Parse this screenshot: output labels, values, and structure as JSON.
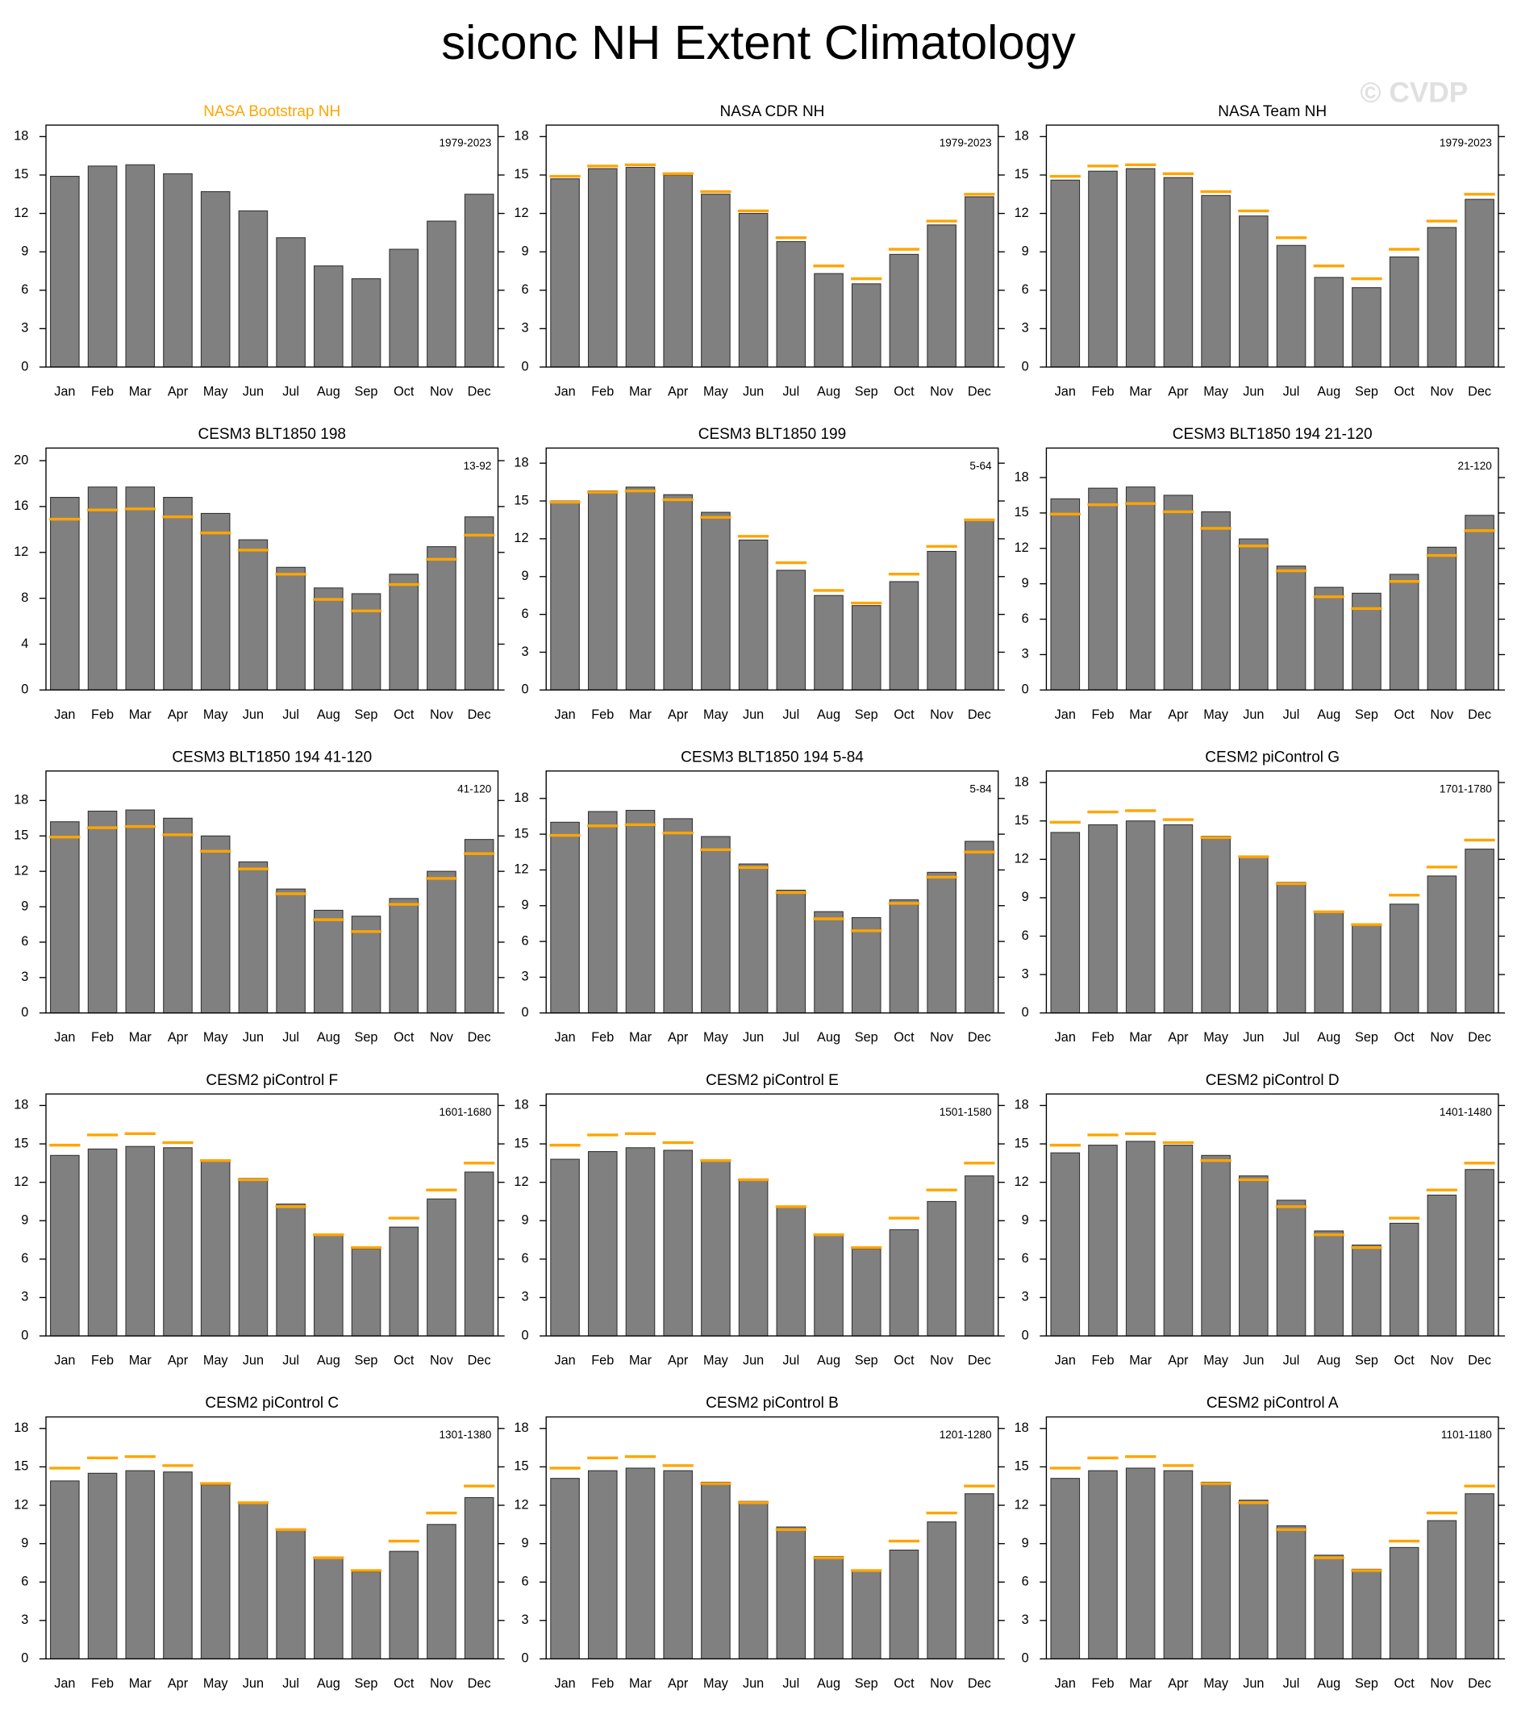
{
  "title": "siconc NH Extent Climatology",
  "watermark": "© CVDP",
  "chart_data": [
    {
      "type": "bar",
      "title": "NASA Bootstrap NH",
      "title_color": "#ffa500",
      "annotation": "1979-2023",
      "categories": [
        "Jan",
        "Feb",
        "Mar",
        "Apr",
        "May",
        "Jun",
        "Jul",
        "Aug",
        "Sep",
        "Oct",
        "Nov",
        "Dec"
      ],
      "values": [
        14.9,
        15.7,
        15.8,
        15.1,
        13.7,
        12.2,
        10.1,
        7.9,
        6.9,
        9.2,
        11.4,
        13.5
      ],
      "color": "#808080",
      "ylim": [
        0,
        18.9
      ],
      "yticks": [
        0,
        3,
        6,
        9,
        12,
        15,
        18
      ]
    },
    {
      "type": "bar",
      "title": "NASA CDR NH",
      "title_color": "#000000",
      "annotation": "1979-2023",
      "categories": [
        "Jan",
        "Feb",
        "Mar",
        "Apr",
        "May",
        "Jun",
        "Jul",
        "Aug",
        "Sep",
        "Oct",
        "Nov",
        "Dec"
      ],
      "values": [
        14.7,
        15.5,
        15.6,
        15.0,
        13.5,
        12.0,
        9.8,
        7.3,
        6.5,
        8.8,
        11.1,
        13.3
      ],
      "color": "#808080",
      "ref_values": [
        14.9,
        15.7,
        15.8,
        15.1,
        13.7,
        12.2,
        10.1,
        7.9,
        6.9,
        9.2,
        11.4,
        13.5
      ],
      "ref_color": "#ffa500",
      "ylim": [
        0,
        18.9
      ],
      "yticks": [
        0,
        3,
        6,
        9,
        12,
        15,
        18
      ]
    },
    {
      "type": "bar",
      "title": "NASA Team NH",
      "title_color": "#000000",
      "annotation": "1979-2023",
      "categories": [
        "Jan",
        "Feb",
        "Mar",
        "Apr",
        "May",
        "Jun",
        "Jul",
        "Aug",
        "Sep",
        "Oct",
        "Nov",
        "Dec"
      ],
      "values": [
        14.6,
        15.3,
        15.5,
        14.8,
        13.4,
        11.8,
        9.5,
        7.0,
        6.2,
        8.6,
        10.9,
        13.1
      ],
      "color": "#808080",
      "ref_values": [
        14.9,
        15.7,
        15.8,
        15.1,
        13.7,
        12.2,
        10.1,
        7.9,
        6.9,
        9.2,
        11.4,
        13.5
      ],
      "ref_color": "#ffa500",
      "ylim": [
        0,
        18.9
      ],
      "yticks": [
        0,
        3,
        6,
        9,
        12,
        15,
        18
      ]
    },
    {
      "type": "bar",
      "title": "CESM3 BLT1850 198",
      "title_color": "#000000",
      "annotation": "13-92",
      "categories": [
        "Jan",
        "Feb",
        "Mar",
        "Apr",
        "May",
        "Jun",
        "Jul",
        "Aug",
        "Sep",
        "Oct",
        "Nov",
        "Dec"
      ],
      "values": [
        16.8,
        17.7,
        17.7,
        16.8,
        15.4,
        13.1,
        10.7,
        8.9,
        8.4,
        10.1,
        12.5,
        15.1
      ],
      "color": "#808080",
      "ref_values": [
        14.9,
        15.7,
        15.8,
        15.1,
        13.7,
        12.2,
        10.1,
        7.9,
        6.9,
        9.2,
        11.4,
        13.5
      ],
      "ref_color": "#ffa500",
      "ylim": [
        0,
        21.1
      ],
      "yticks": [
        0,
        4,
        8,
        12,
        16,
        20
      ]
    },
    {
      "type": "bar",
      "title": "CESM3 BLT1850 199",
      "title_color": "#000000",
      "annotation": "5-64",
      "categories": [
        "Jan",
        "Feb",
        "Mar",
        "Apr",
        "May",
        "Jun",
        "Jul",
        "Aug",
        "Sep",
        "Oct",
        "Nov",
        "Dec"
      ],
      "values": [
        15.0,
        15.8,
        16.1,
        15.5,
        14.1,
        11.9,
        9.5,
        7.5,
        6.7,
        8.6,
        11.0,
        13.5
      ],
      "color": "#808080",
      "ref_values": [
        14.9,
        15.7,
        15.8,
        15.1,
        13.7,
        12.2,
        10.1,
        7.9,
        6.9,
        9.2,
        11.4,
        13.5
      ],
      "ref_color": "#ffa500",
      "ylim": [
        0,
        19.2
      ],
      "yticks": [
        0,
        3,
        6,
        9,
        12,
        15,
        18
      ]
    },
    {
      "type": "bar",
      "title": "CESM3 BLT1850 194 21-120",
      "title_color": "#000000",
      "annotation": "21-120",
      "categories": [
        "Jan",
        "Feb",
        "Mar",
        "Apr",
        "May",
        "Jun",
        "Jul",
        "Aug",
        "Sep",
        "Oct",
        "Nov",
        "Dec"
      ],
      "values": [
        16.2,
        17.1,
        17.2,
        16.5,
        15.1,
        12.8,
        10.5,
        8.7,
        8.2,
        9.8,
        12.1,
        14.8
      ],
      "color": "#808080",
      "ref_values": [
        14.9,
        15.7,
        15.8,
        15.1,
        13.7,
        12.2,
        10.1,
        7.9,
        6.9,
        9.2,
        11.4,
        13.5
      ],
      "ref_color": "#ffa500",
      "ylim": [
        0,
        20.5
      ],
      "yticks": [
        0,
        3,
        6,
        9,
        12,
        15,
        18
      ]
    },
    {
      "type": "bar",
      "title": "CESM3 BLT1850 194 41-120",
      "title_color": "#000000",
      "annotation": "41-120",
      "categories": [
        "Jan",
        "Feb",
        "Mar",
        "Apr",
        "May",
        "Jun",
        "Jul",
        "Aug",
        "Sep",
        "Oct",
        "Nov",
        "Dec"
      ],
      "values": [
        16.2,
        17.1,
        17.2,
        16.5,
        15.0,
        12.8,
        10.5,
        8.7,
        8.2,
        9.7,
        12.0,
        14.7
      ],
      "color": "#808080",
      "ref_values": [
        14.9,
        15.7,
        15.8,
        15.1,
        13.7,
        12.2,
        10.1,
        7.9,
        6.9,
        9.2,
        11.4,
        13.5
      ],
      "ref_color": "#ffa500",
      "ylim": [
        0,
        20.5
      ],
      "yticks": [
        0,
        3,
        6,
        9,
        12,
        15,
        18
      ]
    },
    {
      "type": "bar",
      "title": "CESM3 BLT1850 194 5-84",
      "title_color": "#000000",
      "annotation": "5-84",
      "categories": [
        "Jan",
        "Feb",
        "Mar",
        "Apr",
        "May",
        "Jun",
        "Jul",
        "Aug",
        "Sep",
        "Oct",
        "Nov",
        "Dec"
      ],
      "values": [
        16.0,
        16.9,
        17.0,
        16.3,
        14.8,
        12.5,
        10.3,
        8.5,
        8.0,
        9.5,
        11.8,
        14.4
      ],
      "color": "#808080",
      "ref_values": [
        14.9,
        15.7,
        15.8,
        15.1,
        13.7,
        12.2,
        10.1,
        7.9,
        6.9,
        9.2,
        11.4,
        13.5
      ],
      "ref_color": "#ffa500",
      "ylim": [
        0,
        20.3
      ],
      "yticks": [
        0,
        3,
        6,
        9,
        12,
        15,
        18
      ]
    },
    {
      "type": "bar",
      "title": "CESM2 piControl G",
      "title_color": "#000000",
      "annotation": "1701-1780",
      "categories": [
        "Jan",
        "Feb",
        "Mar",
        "Apr",
        "May",
        "Jun",
        "Jul",
        "Aug",
        "Sep",
        "Oct",
        "Nov",
        "Dec"
      ],
      "values": [
        14.1,
        14.7,
        15.0,
        14.7,
        13.8,
        12.2,
        10.2,
        7.9,
        6.9,
        8.5,
        10.7,
        12.8
      ],
      "color": "#808080",
      "ref_values": [
        14.9,
        15.7,
        15.8,
        15.1,
        13.7,
        12.2,
        10.1,
        7.9,
        6.9,
        9.2,
        11.4,
        13.5
      ],
      "ref_color": "#ffa500",
      "ylim": [
        0,
        18.9
      ],
      "yticks": [
        0,
        3,
        6,
        9,
        12,
        15,
        18
      ]
    },
    {
      "type": "bar",
      "title": "CESM2 piControl F",
      "title_color": "#000000",
      "annotation": "1601-1680",
      "categories": [
        "Jan",
        "Feb",
        "Mar",
        "Apr",
        "May",
        "Jun",
        "Jul",
        "Aug",
        "Sep",
        "Oct",
        "Nov",
        "Dec"
      ],
      "values": [
        14.1,
        14.6,
        14.8,
        14.7,
        13.7,
        12.3,
        10.3,
        7.9,
        6.8,
        8.5,
        10.7,
        12.8
      ],
      "color": "#808080",
      "ref_values": [
        14.9,
        15.7,
        15.8,
        15.1,
        13.7,
        12.2,
        10.1,
        7.9,
        6.9,
        9.2,
        11.4,
        13.5
      ],
      "ref_color": "#ffa500",
      "ylim": [
        0,
        18.9
      ],
      "yticks": [
        0,
        3,
        6,
        9,
        12,
        15,
        18
      ]
    },
    {
      "type": "bar",
      "title": "CESM2 piControl E",
      "title_color": "#000000",
      "annotation": "1501-1580",
      "categories": [
        "Jan",
        "Feb",
        "Mar",
        "Apr",
        "May",
        "Jun",
        "Jul",
        "Aug",
        "Sep",
        "Oct",
        "Nov",
        "Dec"
      ],
      "values": [
        13.8,
        14.4,
        14.7,
        14.5,
        13.7,
        12.2,
        10.1,
        7.9,
        6.8,
        8.3,
        10.5,
        12.5
      ],
      "color": "#808080",
      "ref_values": [
        14.9,
        15.7,
        15.8,
        15.1,
        13.7,
        12.2,
        10.1,
        7.9,
        6.9,
        9.2,
        11.4,
        13.5
      ],
      "ref_color": "#ffa500",
      "ylim": [
        0,
        18.9
      ],
      "yticks": [
        0,
        3,
        6,
        9,
        12,
        15,
        18
      ]
    },
    {
      "type": "bar",
      "title": "CESM2 piControl D",
      "title_color": "#000000",
      "annotation": "1401-1480",
      "categories": [
        "Jan",
        "Feb",
        "Mar",
        "Apr",
        "May",
        "Jun",
        "Jul",
        "Aug",
        "Sep",
        "Oct",
        "Nov",
        "Dec"
      ],
      "values": [
        14.3,
        14.9,
        15.2,
        14.9,
        14.1,
        12.5,
        10.6,
        8.2,
        7.1,
        8.8,
        11.0,
        13.0
      ],
      "color": "#808080",
      "ref_values": [
        14.9,
        15.7,
        15.8,
        15.1,
        13.7,
        12.2,
        10.1,
        7.9,
        6.9,
        9.2,
        11.4,
        13.5
      ],
      "ref_color": "#ffa500",
      "ylim": [
        0,
        18.9
      ],
      "yticks": [
        0,
        3,
        6,
        9,
        12,
        15,
        18
      ]
    },
    {
      "type": "bar",
      "title": "CESM2 piControl C",
      "title_color": "#000000",
      "annotation": "1301-1380",
      "categories": [
        "Jan",
        "Feb",
        "Mar",
        "Apr",
        "May",
        "Jun",
        "Jul",
        "Aug",
        "Sep",
        "Oct",
        "Nov",
        "Dec"
      ],
      "values": [
        13.9,
        14.5,
        14.7,
        14.6,
        13.6,
        12.2,
        10.1,
        7.9,
        6.8,
        8.4,
        10.5,
        12.6
      ],
      "color": "#808080",
      "ref_values": [
        14.9,
        15.7,
        15.8,
        15.1,
        13.7,
        12.2,
        10.1,
        7.9,
        6.9,
        9.2,
        11.4,
        13.5
      ],
      "ref_color": "#ffa500",
      "ylim": [
        0,
        18.9
      ],
      "yticks": [
        0,
        3,
        6,
        9,
        12,
        15,
        18
      ]
    },
    {
      "type": "bar",
      "title": "CESM2 piControl B",
      "title_color": "#000000",
      "annotation": "1201-1280",
      "categories": [
        "Jan",
        "Feb",
        "Mar",
        "Apr",
        "May",
        "Jun",
        "Jul",
        "Aug",
        "Sep",
        "Oct",
        "Nov",
        "Dec"
      ],
      "values": [
        14.1,
        14.7,
        14.9,
        14.7,
        13.8,
        12.3,
        10.3,
        8.0,
        6.9,
        8.5,
        10.7,
        12.9
      ],
      "color": "#808080",
      "ref_values": [
        14.9,
        15.7,
        15.8,
        15.1,
        13.7,
        12.2,
        10.1,
        7.9,
        6.9,
        9.2,
        11.4,
        13.5
      ],
      "ref_color": "#ffa500",
      "ylim": [
        0,
        18.9
      ],
      "yticks": [
        0,
        3,
        6,
        9,
        12,
        15,
        18
      ]
    },
    {
      "type": "bar",
      "title": "CESM2 piControl A",
      "title_color": "#000000",
      "annotation": "1101-1180",
      "categories": [
        "Jan",
        "Feb",
        "Mar",
        "Apr",
        "May",
        "Jun",
        "Jul",
        "Aug",
        "Sep",
        "Oct",
        "Nov",
        "Dec"
      ],
      "values": [
        14.1,
        14.7,
        14.9,
        14.7,
        13.8,
        12.4,
        10.4,
        8.1,
        7.0,
        8.7,
        10.8,
        12.9
      ],
      "color": "#808080",
      "ref_values": [
        14.9,
        15.7,
        15.8,
        15.1,
        13.7,
        12.2,
        10.1,
        7.9,
        6.9,
        9.2,
        11.4,
        13.5
      ],
      "ref_color": "#ffa500",
      "ylim": [
        0,
        18.9
      ],
      "yticks": [
        0,
        3,
        6,
        9,
        12,
        15,
        18
      ]
    }
  ]
}
